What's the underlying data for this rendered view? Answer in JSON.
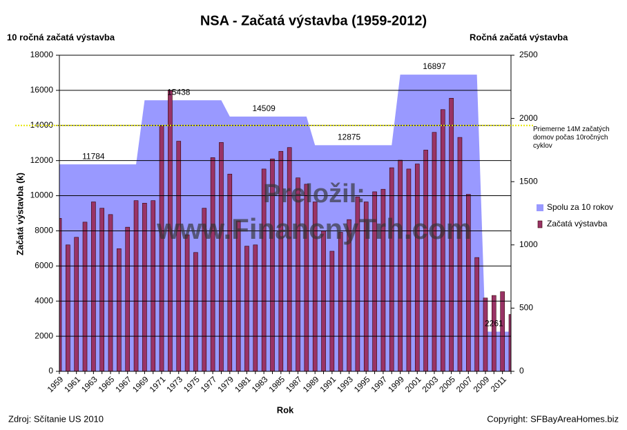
{
  "chart_data": {
    "type": "bar",
    "title": "NSA - Začatá výstavba (1959-2012)",
    "left_axis_title": "10 ročná začatá výstavba",
    "right_axis_title": "Ročná začatá výstavba",
    "y_label": "Začatá výstavba (k)",
    "x_label": "Rok",
    "source": "Zdroj: Sčítanie US 2010",
    "copyright": "Copyright:  SFBayAreaHomes.biz",
    "watermark": [
      "Preložil:",
      "www.FinancnyTrh.com"
    ],
    "categories": [
      "1959",
      null,
      "1961",
      null,
      "1963",
      null,
      "1965",
      null,
      "1967",
      null,
      "1969",
      null,
      "1971",
      null,
      "1973",
      null,
      "1975",
      null,
      "1977",
      null,
      "1979",
      null,
      "1981",
      null,
      "1983",
      null,
      "1985",
      null,
      "1987",
      null,
      "1989",
      null,
      "1991",
      null,
      "1993",
      null,
      "1995",
      null,
      "1997",
      null,
      "1999",
      null,
      "2001",
      null,
      "2003",
      null,
      "2005",
      null,
      "2007",
      null,
      "2009",
      null,
      "2011",
      null
    ],
    "series": [
      {
        "name": "Spolu za 10 rokov",
        "type": "area",
        "color": "#9999ff",
        "values": [
          11784,
          11784,
          11784,
          11784,
          11784,
          11784,
          11784,
          11784,
          11784,
          11784,
          15438,
          15438,
          15438,
          15438,
          15438,
          15438,
          15438,
          15438,
          15438,
          15438,
          14509,
          14509,
          14509,
          14509,
          14509,
          14509,
          14509,
          14509,
          14509,
          14509,
          12875,
          12875,
          12875,
          12875,
          12875,
          12875,
          12875,
          12875,
          12875,
          12875,
          16897,
          16897,
          16897,
          16897,
          16897,
          16897,
          16897,
          16897,
          16897,
          16897,
          2261,
          2261,
          2261,
          2261
        ]
      },
      {
        "name": "Začatá výstavba",
        "type": "bar",
        "axis": "y2",
        "color": "#993366",
        "values": [
          1210,
          1000,
          1060,
          1180,
          1340,
          1290,
          1240,
          970,
          1140,
          1350,
          1330,
          1350,
          1940,
          2220,
          1820,
          1080,
          940,
          1290,
          1690,
          1810,
          1560,
          1190,
          990,
          1000,
          1600,
          1680,
          1740,
          1770,
          1530,
          1480,
          1340,
          1110,
          950,
          1100,
          1200,
          1380,
          1340,
          1420,
          1440,
          1610,
          1670,
          1600,
          1640,
          1750,
          1890,
          2070,
          2160,
          1850,
          1400,
          900,
          580,
          600,
          630,
          450
        ]
      }
    ],
    "reference_line": {
      "value": 14000,
      "color": "#e6e600",
      "label": "Priemerne 14M začatých domov počas 10ročných cyklov"
    },
    "ylim": [
      0,
      18000
    ],
    "yticks": [
      0,
      2000,
      4000,
      6000,
      8000,
      10000,
      12000,
      14000,
      16000,
      18000
    ],
    "y2lim": [
      0,
      2500
    ],
    "y2ticks": [
      0,
      500,
      1000,
      1500,
      2000,
      2500
    ],
    "grid": true,
    "legend": "right"
  }
}
